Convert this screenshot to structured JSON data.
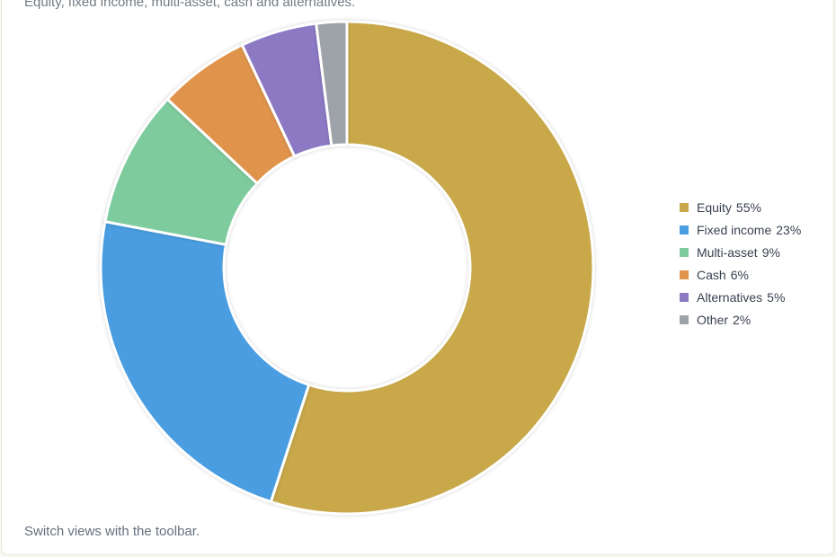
{
  "subtitle": "Equity, fixed income, multi-asset, cash and alternatives.",
  "footer_note": "Switch views with the toolbar.",
  "chart_data": {
    "type": "pie",
    "donut": true,
    "legend_position": "right",
    "slices": [
      {
        "label": "Equity",
        "value": 55,
        "value_label": "55%",
        "color": "#c8a84a"
      },
      {
        "label": "Fixed income",
        "value": 23,
        "value_label": "23%",
        "color": "#4a9de0"
      },
      {
        "label": "Multi-asset",
        "value": 9,
        "value_label": "9%",
        "color": "#7ecb9e"
      },
      {
        "label": "Cash",
        "value": 6,
        "value_label": "6%",
        "color": "#e0944c"
      },
      {
        "label": "Alternatives",
        "value": 5,
        "value_label": "5%",
        "color": "#8c79c4"
      },
      {
        "label": "Other",
        "value": 2,
        "value_label": "2%",
        "color": "#9ea3a9"
      }
    ]
  }
}
